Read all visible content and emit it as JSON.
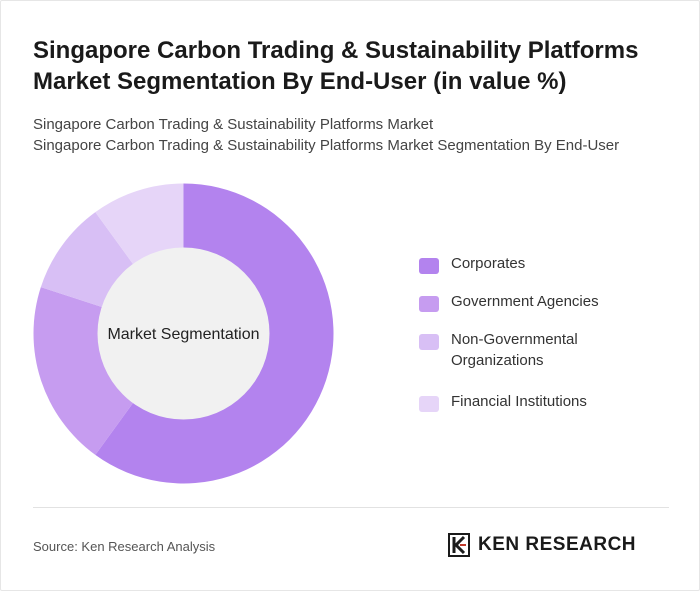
{
  "title": "Singapore Carbon Trading & Sustainability Platforms Market Segmentation By End-User (in value %)",
  "subtitle_lines": [
    "Singapore Carbon Trading & Sustainability Platforms Market",
    "Singapore Carbon Trading & Sustainability Platforms Market Segmentation By End-User"
  ],
  "chart_data": {
    "type": "pie",
    "variant": "donut",
    "center_label": "Market Segmentation",
    "categories": [
      "Corporates",
      "Government Agencies",
      "Non-Governmental Organizations",
      "Financial Institutions"
    ],
    "values": [
      60,
      20,
      10,
      10
    ],
    "colors": [
      "#b383ee",
      "#c69cf0",
      "#d8bff5",
      "#e6d5f8"
    ],
    "legend_position": "right"
  },
  "footer": {
    "source": "Source: Ken Research Analysis",
    "brand": "KEN RESEARCH",
    "brand_icon": "ken-research-logo-icon"
  }
}
